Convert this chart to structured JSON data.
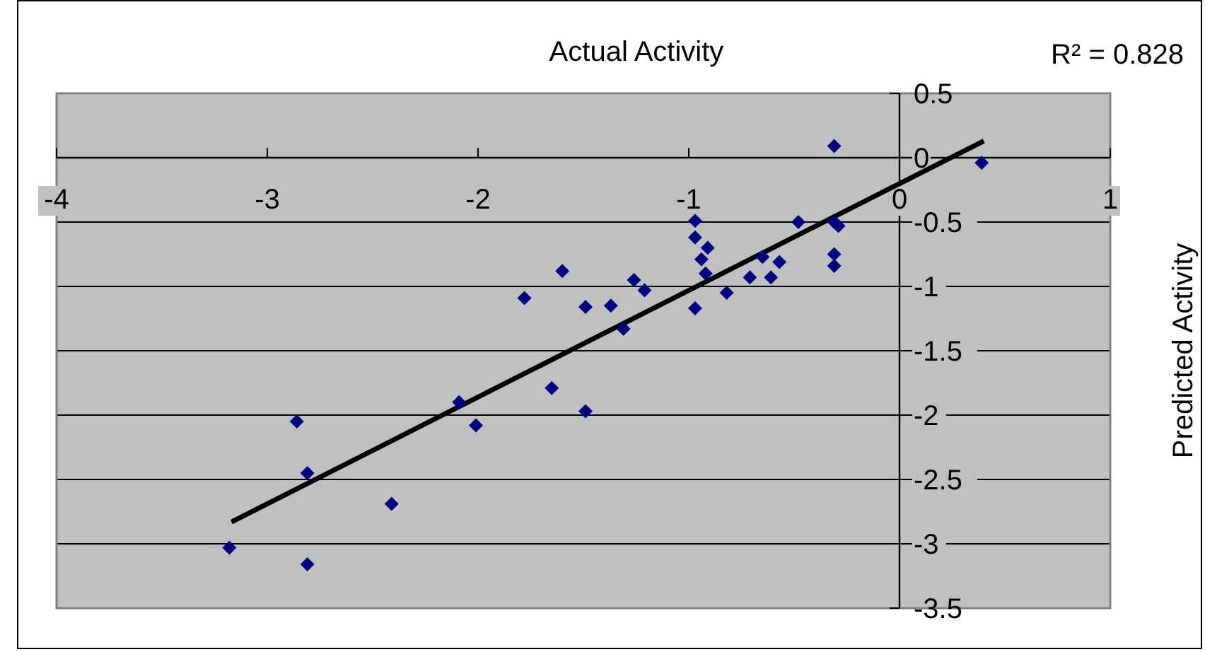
{
  "chart_data": {
    "type": "scatter",
    "title": "Actual Activity",
    "ylabel": "Predicted Activity",
    "annotations": [
      "R² = 0.828"
    ],
    "xlim": [
      -4,
      1
    ],
    "xticks": [
      -4,
      -3,
      -2,
      -1,
      0,
      1
    ],
    "ylim": [
      -3.5,
      0.5
    ],
    "yticks": [
      -3.5,
      -3,
      -2.5,
      -2,
      -1.5,
      -1,
      -0.5,
      0,
      0.5
    ],
    "grid": "y",
    "series": [
      {
        "type": "scatter",
        "marker": "diamond",
        "color": "#000080",
        "x": [
          -3.18,
          -2.86,
          -2.81,
          -2.81,
          -2.41,
          -2.09,
          -2.01,
          -1.78,
          -1.65,
          -1.6,
          -1.49,
          -1.49,
          -1.37,
          -1.31,
          -1.26,
          -1.21,
          -0.97,
          -0.97,
          -0.91,
          -0.94,
          -0.92,
          -0.97,
          -0.82,
          -0.71,
          -0.65,
          -0.61,
          -0.57,
          -0.48,
          -0.31,
          -0.31,
          -0.29,
          -0.31,
          -0.31,
          0.39
        ],
        "values": [
          -3.03,
          -2.05,
          -2.45,
          -3.16,
          -2.69,
          -1.9,
          -2.08,
          -1.09,
          -1.79,
          -0.88,
          -1.16,
          -1.97,
          -1.15,
          -1.33,
          -0.95,
          -1.03,
          -0.49,
          -0.62,
          -0.7,
          -0.79,
          -0.9,
          -1.17,
          -1.05,
          -0.93,
          -0.77,
          -0.93,
          -0.81,
          -0.5,
          0.09,
          -0.5,
          -0.53,
          -0.75,
          -0.84,
          -0.04
        ]
      },
      {
        "type": "line",
        "marker": "none",
        "color": "#000000",
        "x": [
          -3.17,
          0.4
        ],
        "values": [
          -2.83,
          0.13
        ]
      }
    ]
  }
}
